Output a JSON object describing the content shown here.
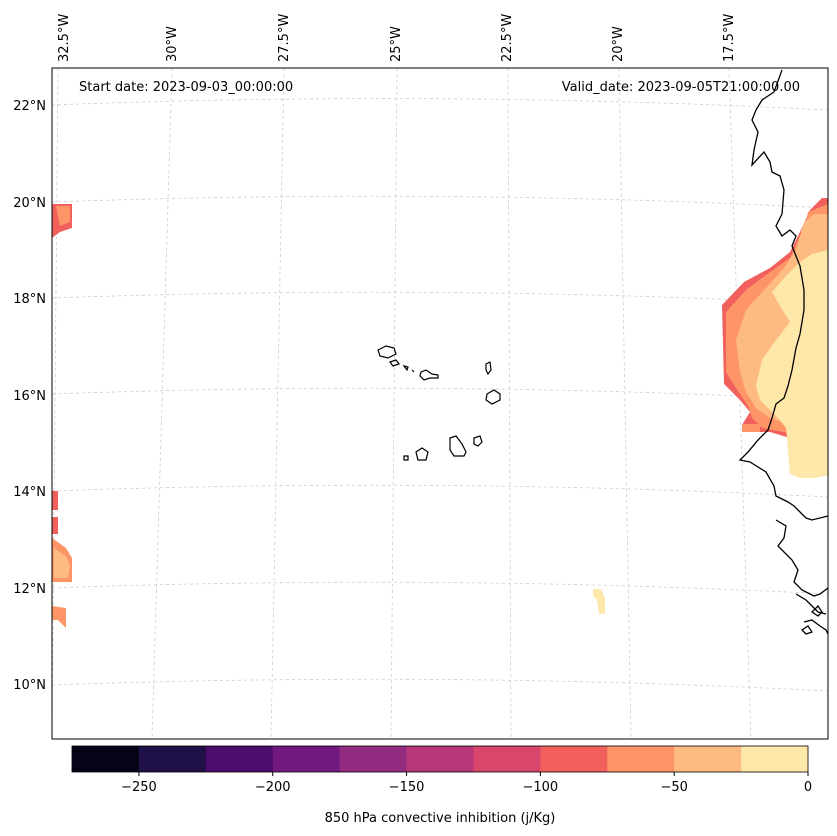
{
  "header": {
    "start_date": "Start date: 2023-09-03_00:00:00",
    "valid_date": "Valid_date: 2023-09-05T21:00:00.00"
  },
  "map": {
    "lon_labels": [
      "32.5°W",
      "30°W",
      "27.5°W",
      "25°W",
      "22.5°W",
      "20°W",
      "17.5°W"
    ],
    "lat_labels": [
      "22°N",
      "20°N",
      "18°N",
      "16°N",
      "14°N",
      "12°N",
      "10°N"
    ],
    "gridlines": "dashed",
    "features": [
      "coastline-africa",
      "cape-verde-islands"
    ]
  },
  "colorbar": {
    "label": "850 hPa convective inhibition (j/Kg)",
    "tick_labels": [
      "−250",
      "−200",
      "−150",
      "−100",
      "−50",
      "0"
    ],
    "levels": [
      -275,
      -250,
      -225,
      -200,
      -175,
      -150,
      -125,
      -100,
      -75,
      -50,
      -25,
      0
    ],
    "colors": [
      "#050416",
      "#1f1148",
      "#4b0c6b",
      "#71197e",
      "#932b80",
      "#b73779",
      "#d9466b",
      "#f1605d",
      "#fd9567",
      "#febb81",
      "#fde7a9"
    ]
  }
}
